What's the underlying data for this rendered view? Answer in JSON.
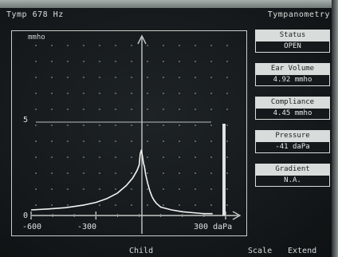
{
  "header": {
    "left_title": "Tymp 678 Hz",
    "right_title": "Tympanometry"
  },
  "graph": {
    "y_unit": "mmho",
    "y_marker": "5",
    "y_zero": "0",
    "tick_labels": [
      "-600",
      "-300",
      "300 daPa"
    ]
  },
  "chart_data": {
    "type": "line",
    "ylabel": "mmho",
    "xlim": [
      -600,
      300
    ],
    "ylim": [
      0,
      5
    ],
    "series": [
      {
        "x": [
          -600,
          -520,
          -440,
          -360,
          -300,
          -250,
          -200,
          -160,
          -130,
          -110,
          -100,
          -95,
          -90,
          -85,
          -80,
          -75,
          -70,
          -60,
          -50,
          -40,
          -30,
          -20,
          0,
          50,
          100,
          150,
          200,
          240
        ],
        "y": [
          0.3,
          0.35,
          0.42,
          0.55,
          0.7,
          0.9,
          1.2,
          1.6,
          2.0,
          2.4,
          2.7,
          3.3,
          3.5,
          3.2,
          2.8,
          2.6,
          2.2,
          1.7,
          1.3,
          1.0,
          0.8,
          0.65,
          0.45,
          0.3,
          0.2,
          0.15,
          0.1,
          0.1
        ]
      }
    ]
  },
  "panels": [
    {
      "label": "Status",
      "value": "OPEN"
    },
    {
      "label": "Ear Volume",
      "value": "4.92 mmho"
    },
    {
      "label": "Compliance",
      "value": "4.45 mmho"
    },
    {
      "label": "Pressure",
      "value": "-41 daPa"
    },
    {
      "label": "Gradient",
      "value": "N.A."
    }
  ],
  "footer": {
    "child": "Child",
    "scale": "Scale",
    "extend": "Extend"
  },
  "colors": {
    "screen_bg": "#15191b",
    "trace": "#f2f4f3",
    "grid_dot": "#6f7877",
    "panel_fill": "#d8dcda"
  }
}
